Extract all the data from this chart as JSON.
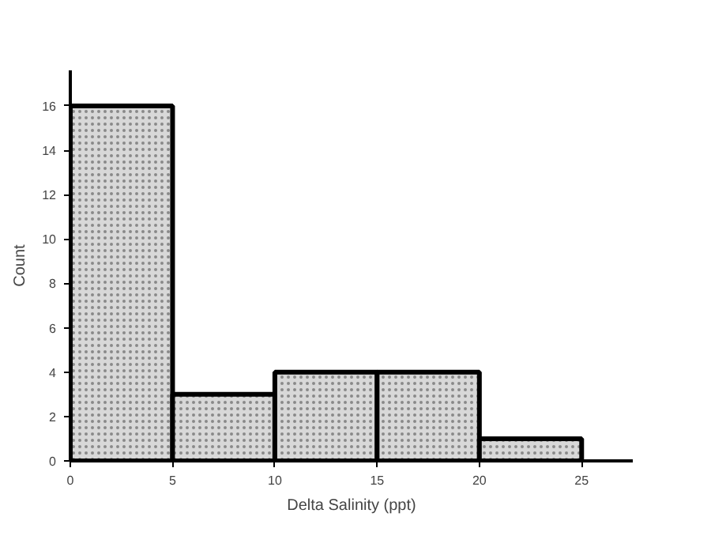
{
  "chart_data": {
    "type": "histogram",
    "xlabel": "Delta Salinity (ppt)",
    "ylabel": "Count",
    "bins": [
      0,
      5,
      10,
      15,
      20,
      25
    ],
    "values": [
      16,
      3,
      4,
      4,
      1
    ],
    "color": "#d8d8d8",
    "xlim": [
      0,
      27.5
    ],
    "ylim": [
      0,
      17.6
    ],
    "xticks": [
      0,
      5,
      10,
      15,
      20,
      25
    ],
    "yticks": [
      0,
      2,
      4,
      6,
      8,
      10,
      12,
      14,
      16
    ],
    "grid": false
  }
}
